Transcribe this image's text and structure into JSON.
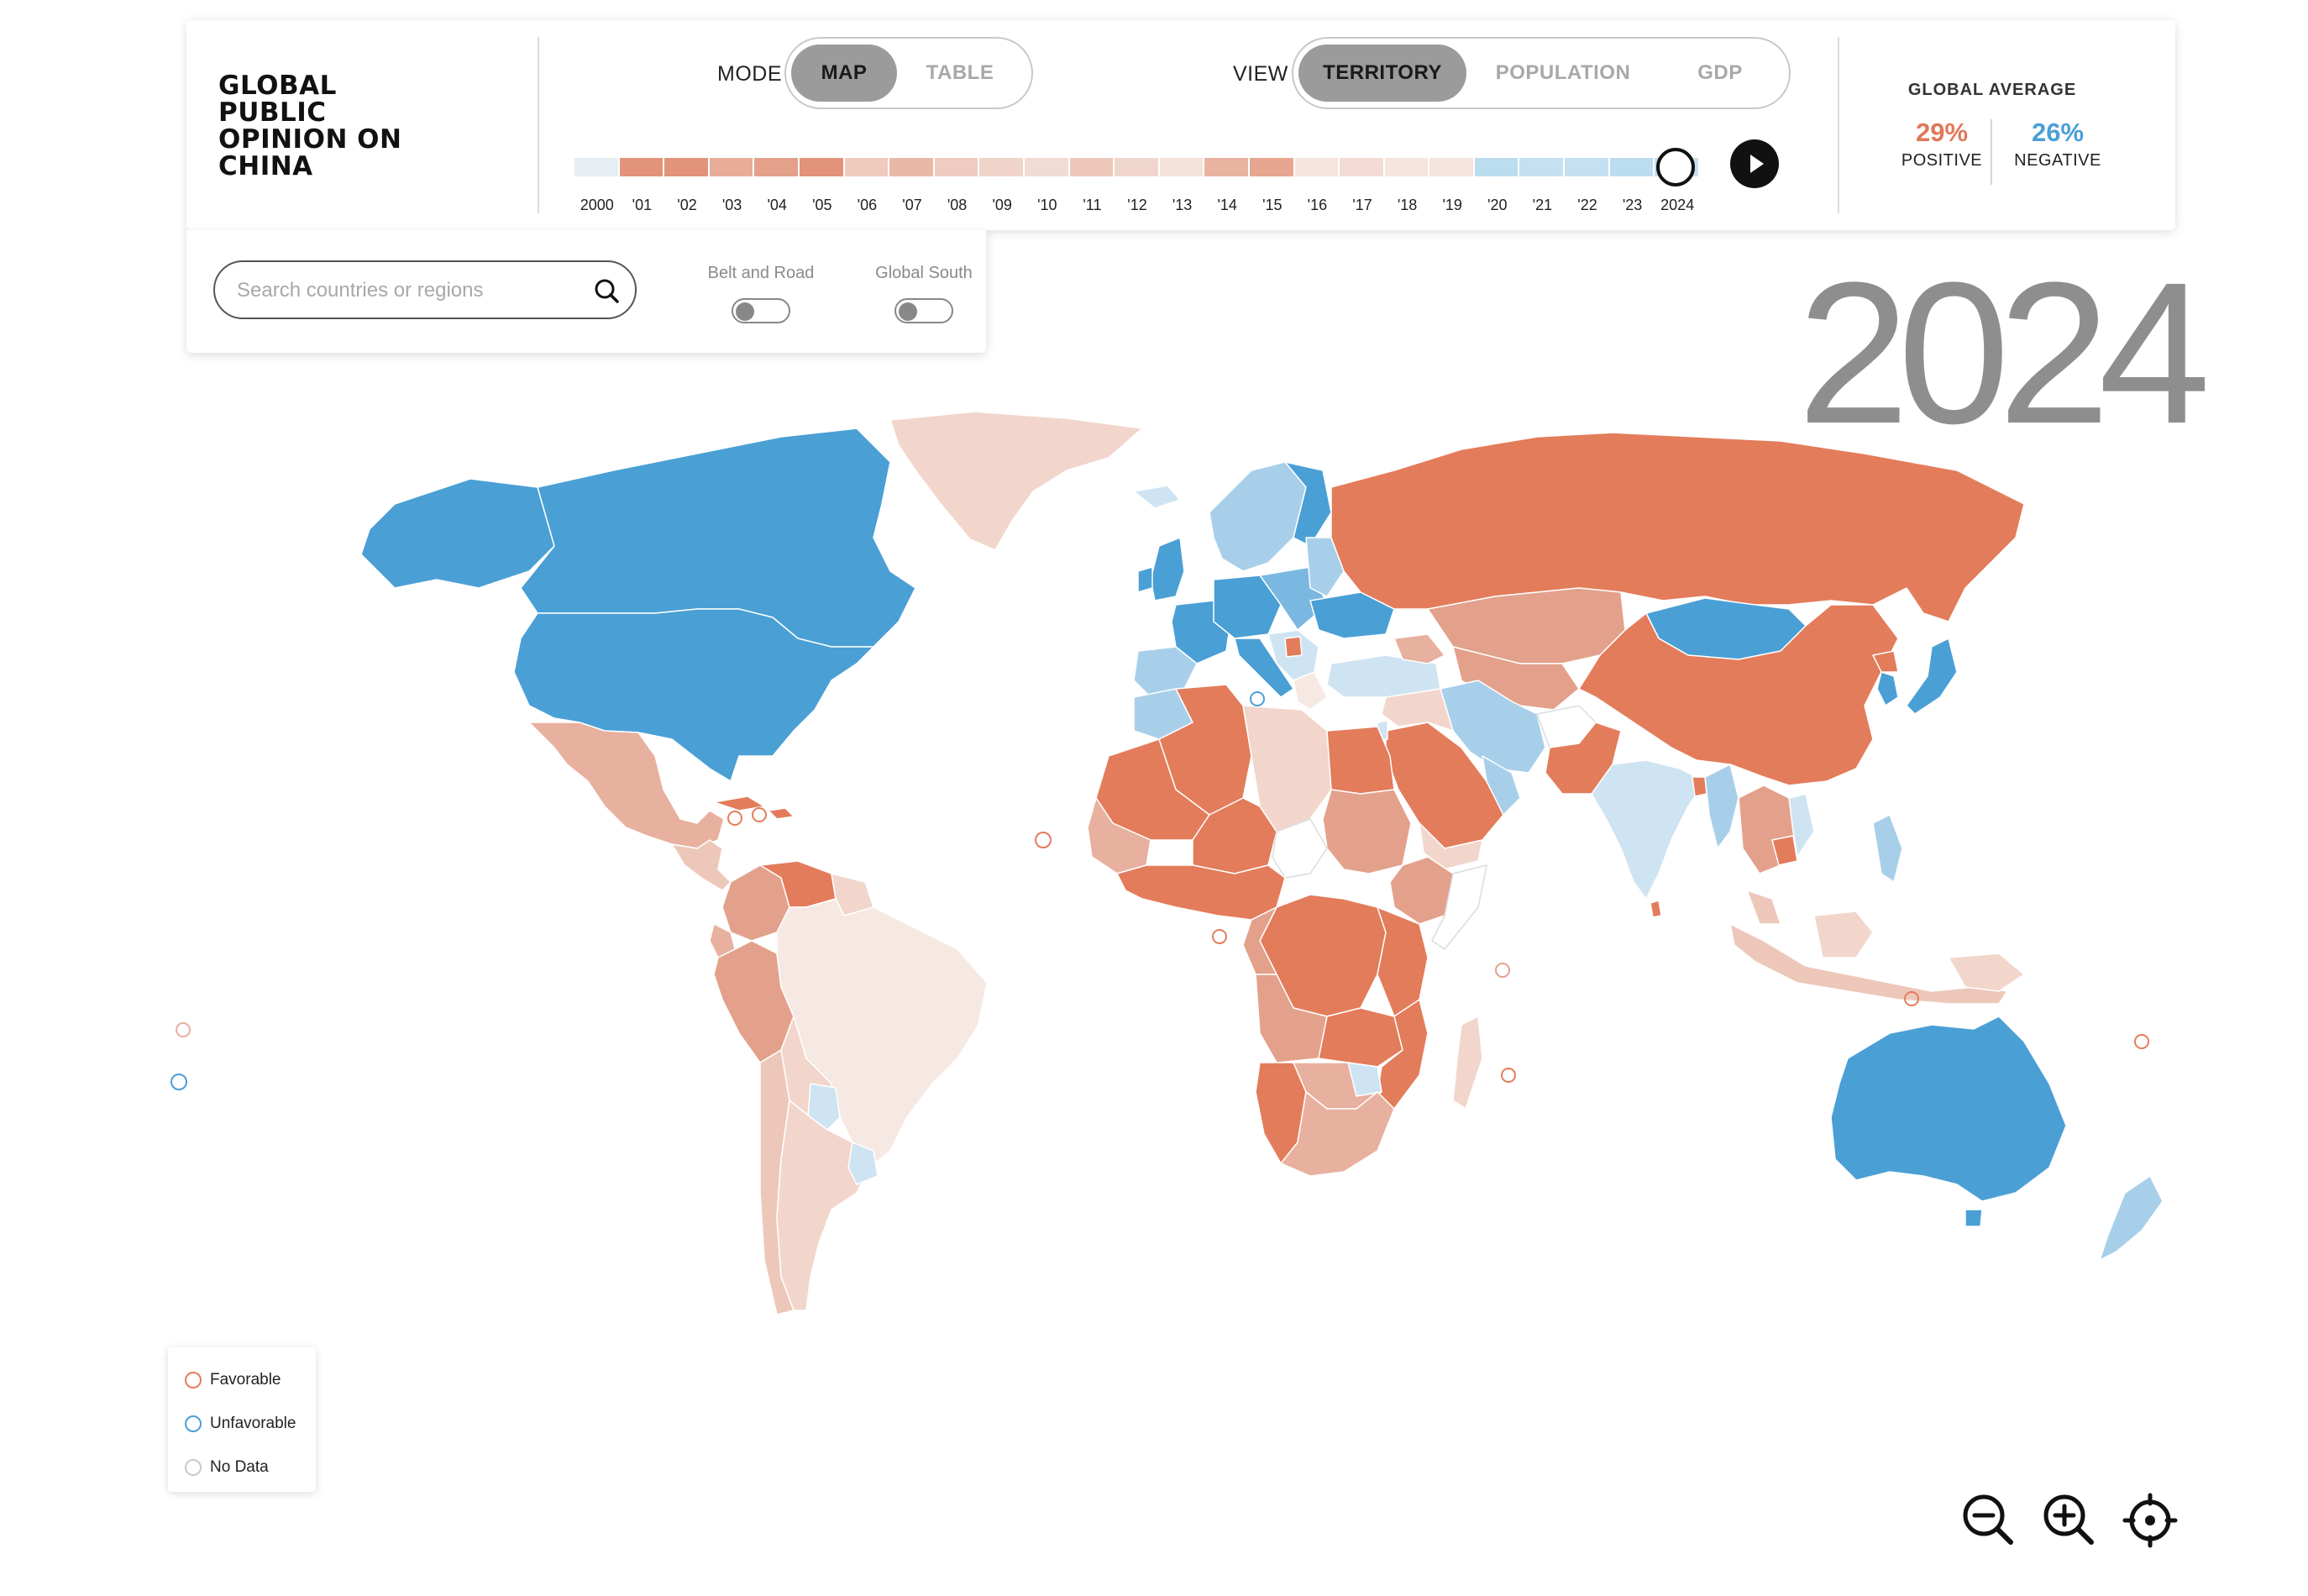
{
  "header": {
    "title": "GLOBAL PUBLIC OPINION ON CHINA",
    "mode": {
      "label": "MODE",
      "options": [
        "MAP",
        "TABLE"
      ],
      "selected": "MAP"
    },
    "view": {
      "label": "VIEW",
      "options": [
        "TERRITORY",
        "POPULATION",
        "GDP"
      ],
      "selected": "TERRITORY"
    }
  },
  "timeline": {
    "years": [
      "2000",
      "'01",
      "'02",
      "'03",
      "'04",
      "'05",
      "'06",
      "'07",
      "'08",
      "'09",
      "'10",
      "'11",
      "'12",
      "'13",
      "'14",
      "'15",
      "'16",
      "'17",
      "'18",
      "'19",
      "'20",
      "'21",
      "'22",
      "'23",
      "2024"
    ],
    "selected": "2024",
    "segment_colors": [
      "#e6eef3",
      "#e3937a",
      "#e3937a",
      "#e8ad99",
      "#e3a08a",
      "#e3937a",
      "#eecbbd",
      "#eab8a7",
      "#efcbc0",
      "#f0d4ca",
      "#f2dbd3",
      "#edc8ba",
      "#f0d6cc",
      "#f4e2db",
      "#e9b3a2",
      "#e6a690",
      "#f6e4de",
      "#f4dcd4",
      "#f6e4de",
      "#f6e4de",
      "#bcdcef",
      "#c4e0f1",
      "#c4e0f1",
      "#bcdcef",
      "#c4e0f1"
    ]
  },
  "global_average": {
    "title": "GLOBAL AVERAGE",
    "positive_value": "29%",
    "positive_label": "POSITIVE",
    "negative_value": "26%",
    "negative_label": "NEGATIVE",
    "positive_color": "#e0785a",
    "negative_color": "#4a9fd5"
  },
  "search": {
    "placeholder": "Search countries or regions"
  },
  "filters": {
    "belt_and_road": "Belt and Road",
    "global_south": "Global South"
  },
  "year_display": "2024",
  "legend": {
    "favorable": "Favorable",
    "unfavorable": "Unfavorable",
    "no_data": "No Data"
  },
  "colors": {
    "favorable_strong": "#e37c5b",
    "favorable_medium": "#e3a18b",
    "favorable_light": "#f2d6cc",
    "favorable_faint": "#f6e8e3",
    "unfavorable_strong": "#4a9fd5",
    "unfavorable_light": "#a8cfea",
    "unfavorable_faint": "#cfe4f2",
    "no_data": "#ffffff"
  },
  "controls": {
    "zoom_out": "zoom-out-icon",
    "zoom_in": "zoom-in-icon",
    "recenter": "crosshair-icon"
  }
}
